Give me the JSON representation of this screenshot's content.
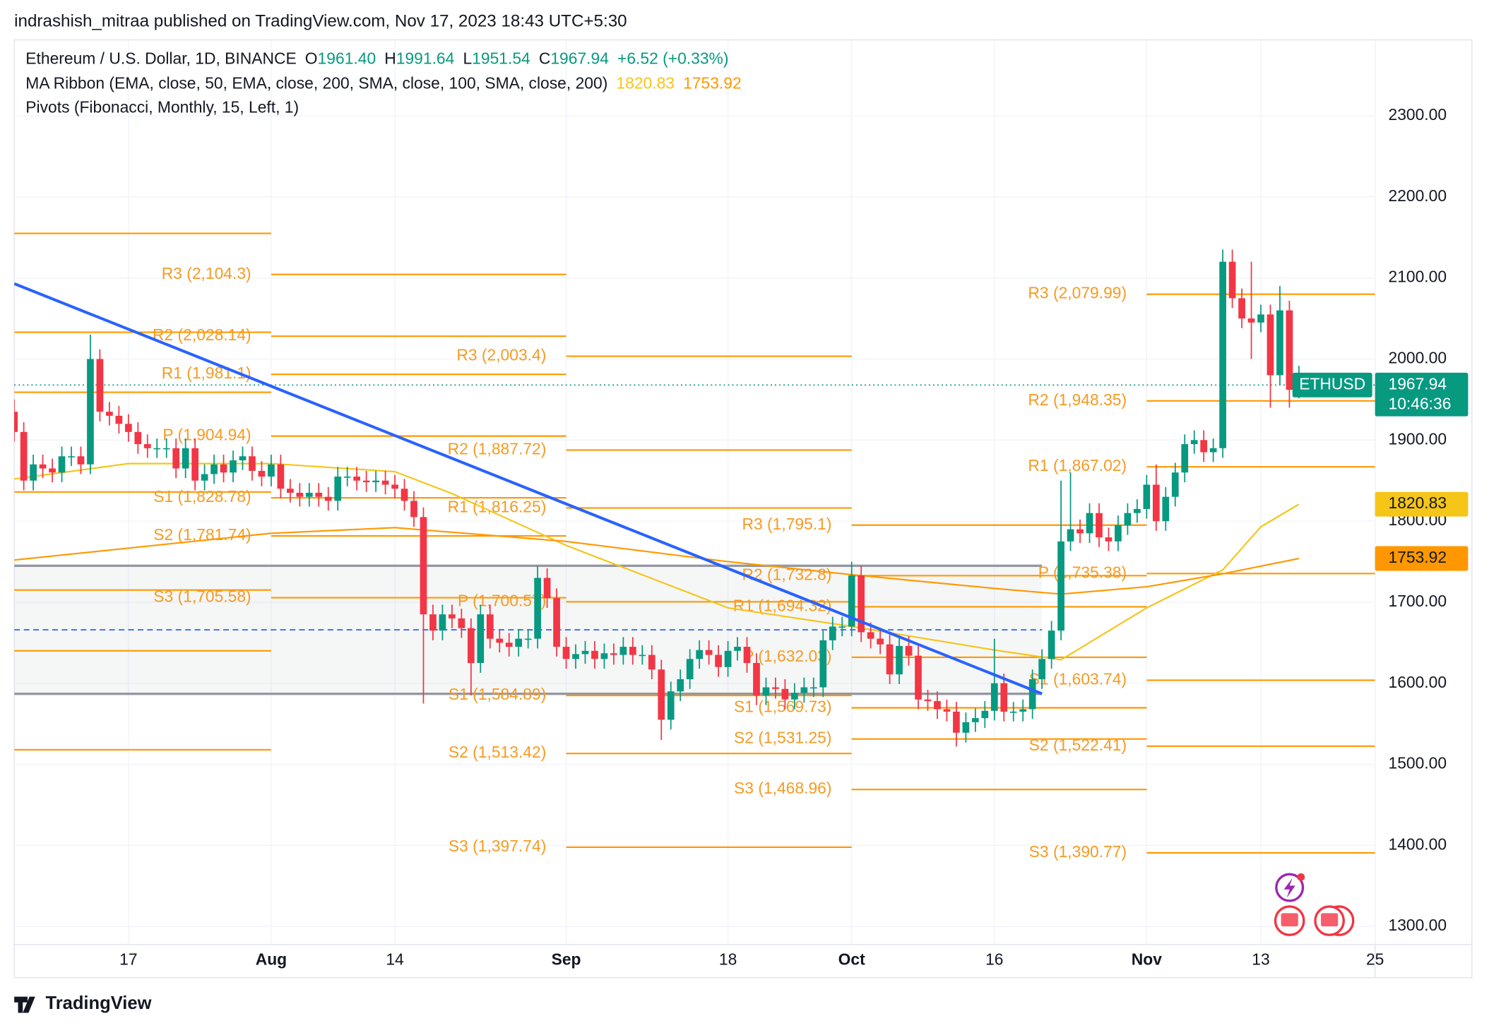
{
  "header": "indrashish_mitraa published on TradingView.com, Nov 17, 2023 18:43 UTC+5:30",
  "footer": "TradingView",
  "chart_data": {
    "type": "candlestick",
    "legend": {
      "name": "Ethereum / U.S. Dollar, 1D, BINANCE",
      "ohlc_letters": [
        "O",
        "H",
        "L",
        "C"
      ],
      "ohlc_values": [
        "1961.40",
        "1991.64",
        "1951.54",
        "1967.94"
      ],
      "change": "+6.52 (+0.33%)",
      "ma_title": "MA Ribbon (EMA, close, 50, EMA, close, 200, SMA, close, 100, SMA, close, 200)",
      "pivots_title": "Pivots (Fibonacci, Monthly, 15, Left, 1)"
    },
    "symbol": "ETHUSD",
    "countdown": "10:46:36",
    "up_color": "#089981",
    "down_color": "#f23645",
    "x": [
      "2023-07-05",
      "2023-07-06",
      "2023-07-07",
      "2023-07-08",
      "2023-07-09",
      "2023-07-10",
      "2023-07-11",
      "2023-07-12",
      "2023-07-13",
      "2023-07-14",
      "2023-07-15",
      "2023-07-16",
      "2023-07-17",
      "2023-07-18",
      "2023-07-19",
      "2023-07-20",
      "2023-07-21",
      "2023-07-22",
      "2023-07-23",
      "2023-07-24",
      "2023-07-25",
      "2023-07-26",
      "2023-07-27",
      "2023-07-28",
      "2023-07-29",
      "2023-07-30",
      "2023-07-31",
      "2023-08-01",
      "2023-08-02",
      "2023-08-03",
      "2023-08-04",
      "2023-08-05",
      "2023-08-06",
      "2023-08-07",
      "2023-08-08",
      "2023-08-09",
      "2023-08-10",
      "2023-08-11",
      "2023-08-12",
      "2023-08-13",
      "2023-08-14",
      "2023-08-15",
      "2023-08-16",
      "2023-08-17",
      "2023-08-18",
      "2023-08-19",
      "2023-08-20",
      "2023-08-21",
      "2023-08-22",
      "2023-08-23",
      "2023-08-24",
      "2023-08-25",
      "2023-08-26",
      "2023-08-27",
      "2023-08-28",
      "2023-08-29",
      "2023-08-30",
      "2023-08-31",
      "2023-09-01",
      "2023-09-02",
      "2023-09-03",
      "2023-09-04",
      "2023-09-05",
      "2023-09-06",
      "2023-09-07",
      "2023-09-08",
      "2023-09-09",
      "2023-09-10",
      "2023-09-11",
      "2023-09-12",
      "2023-09-13",
      "2023-09-14",
      "2023-09-15",
      "2023-09-16",
      "2023-09-17",
      "2023-09-18",
      "2023-09-19",
      "2023-09-20",
      "2023-09-21",
      "2023-09-22",
      "2023-09-23",
      "2023-09-24",
      "2023-09-25",
      "2023-09-26",
      "2023-09-27",
      "2023-09-28",
      "2023-09-29",
      "2023-09-30",
      "2023-10-01",
      "2023-10-02",
      "2023-10-03",
      "2023-10-04",
      "2023-10-05",
      "2023-10-06",
      "2023-10-07",
      "2023-10-08",
      "2023-10-09",
      "2023-10-10",
      "2023-10-11",
      "2023-10-12",
      "2023-10-13",
      "2023-10-14",
      "2023-10-15",
      "2023-10-16",
      "2023-10-17",
      "2023-10-18",
      "2023-10-19",
      "2023-10-20",
      "2023-10-21",
      "2023-10-22",
      "2023-10-23",
      "2023-10-24",
      "2023-10-25",
      "2023-10-26",
      "2023-10-27",
      "2023-10-28",
      "2023-10-29",
      "2023-10-30",
      "2023-10-31",
      "2023-11-01",
      "2023-11-02",
      "2023-11-03",
      "2023-11-04",
      "2023-11-05",
      "2023-11-06",
      "2023-11-07",
      "2023-11-08",
      "2023-11-09",
      "2023-11-10",
      "2023-11-11",
      "2023-11-12",
      "2023-11-13",
      "2023-11-14",
      "2023-11-15",
      "2023-11-16",
      "2023-11-17"
    ],
    "open": [
      1935,
      1910,
      1850,
      1870,
      1865,
      1860,
      1880,
      1880,
      1870,
      2000,
      1935,
      1930,
      1920,
      1910,
      1895,
      1890,
      1890,
      1890,
      1865,
      1890,
      1850,
      1858,
      1870,
      1860,
      1875,
      1880,
      1862,
      1855,
      1870,
      1840,
      1835,
      1830,
      1835,
      1830,
      1825,
      1855,
      1855,
      1850,
      1848,
      1850,
      1845,
      1840,
      1825,
      1805,
      1685,
      1665,
      1685,
      1680,
      1668,
      1625,
      1685,
      1655,
      1650,
      1645,
      1655,
      1655,
      1730,
      1705,
      1645,
      1630,
      1636,
      1640,
      1630,
      1637,
      1635,
      1645,
      1635,
      1635,
      1617,
      1555,
      1590,
      1605,
      1630,
      1641,
      1635,
      1620,
      1640,
      1645,
      1625,
      1585,
      1595,
      1593,
      1580,
      1588,
      1595,
      1595,
      1653,
      1670,
      1670,
      1733,
      1663,
      1655,
      1648,
      1611,
      1646,
      1634,
      1580,
      1578,
      1568,
      1565,
      1539,
      1552,
      1557,
      1566,
      1600,
      1565,
      1565,
      1568,
      1605,
      1630,
      1665,
      1775,
      1790,
      1785,
      1810,
      1780,
      1775,
      1795,
      1810,
      1815,
      1845,
      1800,
      1830,
      1860,
      1895,
      1900,
      1885,
      1890,
      2120,
      2075,
      2050,
      2045,
      2055,
      1980,
      2060,
      1961.4
    ],
    "high": [
      1950,
      1922,
      1882,
      1882,
      1877,
      1892,
      1892,
      1892,
      2030,
      2012,
      1947,
      1942,
      1932,
      1922,
      1907,
      1902,
      1902,
      1902,
      1902,
      1902,
      1870,
      1882,
      1882,
      1887,
      1892,
      1892,
      1874,
      1882,
      1882,
      1852,
      1847,
      1847,
      1847,
      1842,
      1867,
      1867,
      1867,
      1862,
      1862,
      1862,
      1857,
      1852,
      1837,
      1817,
      1697,
      1697,
      1697,
      1692,
      1680,
      1697,
      1697,
      1667,
      1662,
      1667,
      1667,
      1745,
      1742,
      1717,
      1657,
      1648,
      1652,
      1652,
      1649,
      1649,
      1657,
      1657,
      1647,
      1647,
      1629,
      1602,
      1617,
      1642,
      1653,
      1653,
      1647,
      1652,
      1657,
      1657,
      1637,
      1607,
      1607,
      1605,
      1600,
      1607,
      1607,
      1665,
      1682,
      1682,
      1750,
      1745,
      1675,
      1667,
      1660,
      1658,
      1658,
      1646,
      1592,
      1590,
      1580,
      1577,
      1564,
      1569,
      1578,
      1655,
      1612,
      1577,
      1580,
      1617,
      1642,
      1677,
      1850,
      1860,
      1802,
      1822,
      1822,
      1792,
      1807,
      1822,
      1827,
      1857,
      1870,
      1842,
      1872,
      1907,
      1912,
      1912,
      1902,
      2135,
      2135,
      2087,
      2120,
      2067,
      2067,
      2090,
      2072,
      1991.64
    ],
    "low": [
      1898,
      1838,
      1838,
      1853,
      1848,
      1848,
      1868,
      1858,
      1858,
      1923,
      1918,
      1908,
      1898,
      1883,
      1878,
      1878,
      1878,
      1853,
      1853,
      1838,
      1838,
      1846,
      1848,
      1848,
      1863,
      1850,
      1843,
      1843,
      1828,
      1823,
      1818,
      1818,
      1818,
      1813,
      1813,
      1843,
      1838,
      1836,
      1836,
      1833,
      1828,
      1813,
      1793,
      1575,
      1653,
      1653,
      1668,
      1656,
      1585,
      1613,
      1643,
      1638,
      1633,
      1633,
      1643,
      1643,
      1693,
      1633,
      1618,
      1618,
      1624,
      1618,
      1618,
      1623,
      1623,
      1623,
      1623,
      1605,
      1530,
      1543,
      1578,
      1593,
      1618,
      1623,
      1608,
      1608,
      1628,
      1613,
      1573,
      1573,
      1581,
      1568,
      1568,
      1576,
      1583,
      1583,
      1641,
      1658,
      1658,
      1651,
      1643,
      1636,
      1599,
      1599,
      1622,
      1568,
      1566,
      1556,
      1553,
      1522,
      1527,
      1540,
      1545,
      1554,
      1553,
      1553,
      1553,
      1556,
      1593,
      1618,
      1653,
      1763,
      1773,
      1773,
      1768,
      1763,
      1763,
      1783,
      1798,
      1803,
      1788,
      1788,
      1818,
      1848,
      1883,
      1873,
      1873,
      1878,
      2063,
      2038,
      2000,
      2033,
      1940,
      1968,
      1940,
      1951.54
    ],
    "close": [
      1910,
      1850,
      1870,
      1865,
      1860,
      1880,
      1880,
      1870,
      2000,
      1935,
      1930,
      1920,
      1910,
      1895,
      1890,
      1890,
      1890,
      1865,
      1890,
      1850,
      1858,
      1870,
      1860,
      1875,
      1880,
      1862,
      1855,
      1870,
      1840,
      1835,
      1830,
      1835,
      1830,
      1825,
      1855,
      1855,
      1850,
      1848,
      1850,
      1845,
      1840,
      1825,
      1805,
      1685,
      1665,
      1685,
      1680,
      1668,
      1625,
      1685,
      1655,
      1650,
      1645,
      1655,
      1655,
      1730,
      1705,
      1645,
      1630,
      1636,
      1640,
      1630,
      1637,
      1635,
      1645,
      1635,
      1635,
      1617,
      1555,
      1590,
      1605,
      1630,
      1641,
      1635,
      1620,
      1640,
      1645,
      1625,
      1585,
      1595,
      1593,
      1580,
      1588,
      1595,
      1595,
      1653,
      1670,
      1670,
      1733,
      1663,
      1655,
      1648,
      1611,
      1646,
      1634,
      1580,
      1578,
      1568,
      1565,
      1539,
      1552,
      1557,
      1566,
      1600,
      1565,
      1565,
      1568,
      1605,
      1630,
      1665,
      1775,
      1790,
      1785,
      1810,
      1780,
      1775,
      1795,
      1810,
      1815,
      1845,
      1800,
      1830,
      1860,
      1895,
      1900,
      1885,
      1890,
      2120,
      2075,
      2050,
      2045,
      2055,
      1980,
      2060,
      1962,
      1967.94
    ],
    "ma": [
      {
        "name": "EMA 50",
        "color": "#f5c518",
        "x": [
          "2023-07-05",
          "2023-07-17",
          "2023-08-01",
          "2023-08-14",
          "2023-08-20",
          "2023-09-01",
          "2023-09-18",
          "2023-10-01",
          "2023-10-16",
          "2023-10-23",
          "2023-11-01",
          "2023-11-09",
          "2023-11-13",
          "2023-11-17"
        ],
        "values": [
          1852,
          1871,
          1871,
          1861,
          1834,
          1770,
          1693,
          1670,
          1641,
          1629,
          1693,
          1740,
          1793,
          1820.83
        ]
      },
      {
        "name": "SMA 200",
        "color": "#ff9800",
        "x": [
          "2023-07-05",
          "2023-08-01",
          "2023-08-14",
          "2023-09-01",
          "2023-09-18",
          "2023-10-01",
          "2023-10-16",
          "2023-10-23",
          "2023-11-01",
          "2023-11-09",
          "2023-11-17"
        ],
        "values": [
          1752,
          1785,
          1792,
          1775,
          1750,
          1734,
          1717,
          1710,
          1719,
          1735,
          1753.92
        ]
      }
    ],
    "pivot_color": "#ff9800",
    "pivots": [
      {
        "start": "2023-07-05",
        "levels": [
          2155,
          2033,
          1959,
          1836,
          1715,
          1640,
          1518
        ]
      },
      {
        "start": "2023-08-01",
        "levels": [
          2104.3,
          2028.14,
          1981.1,
          1904.94,
          1828.78,
          1781.74,
          1705.58
        ],
        "labels": [
          "R3 (2,104.3)",
          "R2 (2,028.14)",
          "R1 (1,981.1)",
          "P (1,904.94)",
          "S1 (1,828.78)",
          "S2 (1,781.74)",
          "S3 (1,705.58)"
        ]
      },
      {
        "start": "2023-09-01",
        "levels": [
          2003.4,
          1887.72,
          1816.25,
          1700.57,
          1584.89,
          1513.42,
          1397.74
        ],
        "labels": [
          "R3 (2,003.4)",
          "R2 (1,887.72)",
          "R1 (1,816.25)",
          "P (1,700.57)",
          "S1 (1,584.89)",
          "S2 (1,513.42)",
          "S3 (1,397.74)"
        ]
      },
      {
        "start": "2023-10-01",
        "levels": [
          1795.1,
          1732.8,
          1694.32,
          1632.03,
          1569.73,
          1531.25,
          1468.96
        ],
        "labels": [
          "R3 (1,795.1)",
          "R2 (1,732.8)",
          "R1 (1,694.32)",
          "P (1,632.03)",
          "S1 (1,569.73)",
          "S2 (1,531.25)",
          "S3 (1,468.96)"
        ]
      },
      {
        "start": "2023-11-01",
        "levels": [
          2079.99,
          1948.35,
          1867.02,
          1735.38,
          1603.74,
          1522.41,
          1390.77
        ],
        "labels": [
          "R3 (2,079.99)",
          "R2 (1,948.35)",
          "R1 (1,867.02)",
          "P (1,735.38)",
          "S1 (1,603.74)",
          "S2 (1,522.41)",
          "S3 (1,390.77)"
        ]
      }
    ],
    "trendline": {
      "color": "#2962ff",
      "x": [
        "2023-07-05",
        "2023-10-21"
      ],
      "values": [
        2093,
        1587
      ]
    },
    "range_box": {
      "x": [
        "2023-07-05",
        "2023-10-21"
      ],
      "top": 1745,
      "bottom": 1587,
      "mid": 1666
    },
    "xlim": [
      "2023-07-05",
      "2023-11-25"
    ],
    "ylim": [
      1277.8,
      2425.3
    ],
    "xticks": [
      {
        "value": "2023-07-17",
        "label": "17"
      },
      {
        "value": "2023-08-01",
        "label": "Aug"
      },
      {
        "value": "2023-08-14",
        "label": "14"
      },
      {
        "value": "2023-09-01",
        "label": "Sep"
      },
      {
        "value": "2023-09-18",
        "label": "18"
      },
      {
        "value": "2023-10-01",
        "label": "Oct"
      },
      {
        "value": "2023-10-16",
        "label": "16"
      },
      {
        "value": "2023-11-01",
        "label": "Nov"
      },
      {
        "value": "2023-11-13",
        "label": "13"
      },
      {
        "value": "2023-11-25",
        "label": "25"
      }
    ],
    "yticks": [
      {
        "value": 1300,
        "label": "1300.00"
      },
      {
        "value": 1400,
        "label": "1400.00"
      },
      {
        "value": 1500,
        "label": "1500.00"
      },
      {
        "value": 1600,
        "label": "1600.00"
      },
      {
        "value": 1700,
        "label": "1700.00"
      },
      {
        "value": 1800,
        "label": "1800.00"
      },
      {
        "value": 1900,
        "label": "1900.00"
      },
      {
        "value": 2000,
        "label": "2000.00"
      },
      {
        "value": 2100,
        "label": "2100.00"
      },
      {
        "value": 2200,
        "label": "2200.00"
      },
      {
        "value": 2300,
        "label": "2300.00"
      }
    ],
    "grid": true
  }
}
